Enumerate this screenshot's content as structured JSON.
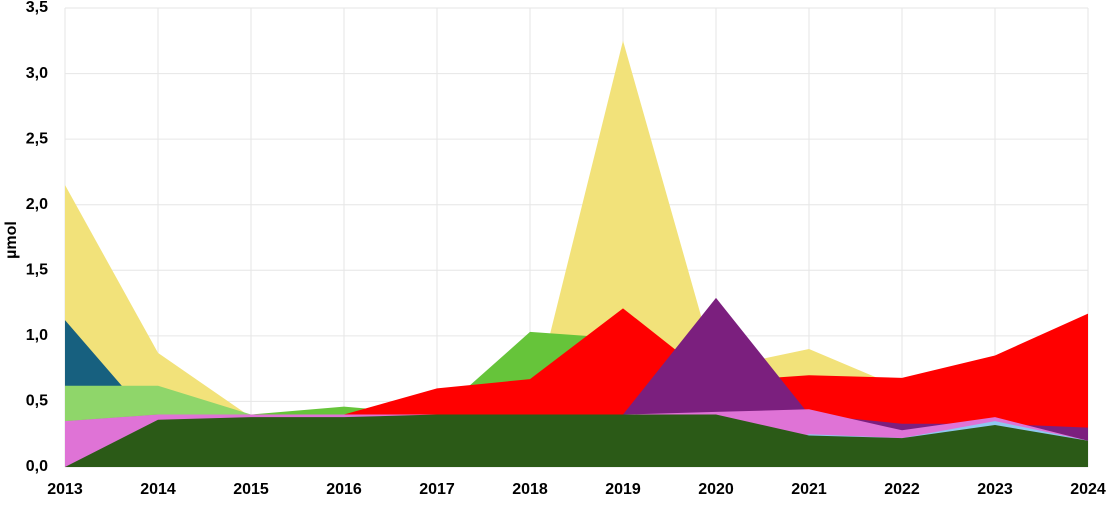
{
  "chart_data": {
    "type": "area",
    "y_label": "µmol",
    "x": [
      2013,
      2014,
      2015,
      2016,
      2017,
      2018,
      2019,
      2020,
      2021,
      2022,
      2023,
      2024
    ],
    "xlim": [
      2013,
      2024
    ],
    "xticks": [
      2013,
      2014,
      2015,
      2016,
      2017,
      2018,
      2019,
      2020,
      2021,
      2022,
      2023,
      2024
    ],
    "ylim": [
      0,
      3.5
    ],
    "yticks": [
      {
        "value": 0,
        "label": "0,0"
      },
      {
        "value": 0.5,
        "label": "0,5"
      },
      {
        "value": 1,
        "label": "1,0"
      },
      {
        "value": 1.5,
        "label": "1,5"
      },
      {
        "value": 2,
        "label": "2,0"
      },
      {
        "value": 2.5,
        "label": "2,5"
      },
      {
        "value": 3,
        "label": "3,0"
      },
      {
        "value": 3.5,
        "label": "3,5"
      }
    ],
    "grid": true,
    "series": [
      {
        "color": "#f2e27a",
        "values": [
          2.15,
          0.87,
          0.38,
          0.4,
          0.4,
          0.4,
          3.25,
          0.75,
          0.9,
          0.6,
          0.6,
          0.3
        ]
      },
      {
        "color": "#17607f",
        "values": [
          1.12,
          0.3,
          0.3,
          0.3,
          0.3,
          0.3,
          0.3,
          0.3,
          0.3,
          0.3,
          0.3,
          0.2
        ]
      },
      {
        "color": "#8fd66a",
        "values": [
          0.62,
          0.62,
          0.4,
          0.4,
          0.4,
          0.4,
          0.4,
          0.4,
          0.4,
          0.3,
          0.3,
          0.2
        ]
      },
      {
        "color": "#66c43a",
        "values": [
          0.35,
          0.4,
          0.4,
          0.46,
          0.4,
          1.03,
          0.98,
          0.4,
          0.4,
          0.3,
          0.42,
          0.2
        ]
      },
      {
        "color": "#ff0000",
        "values": [
          0,
          0,
          0,
          0.4,
          0.6,
          0.67,
          1.21,
          0.65,
          0.7,
          0.68,
          0.85,
          1.17
        ]
      },
      {
        "color": "#7b1f7e",
        "values": [
          0,
          0,
          0,
          0,
          0,
          0,
          0.4,
          1.29,
          0.4,
          0.33,
          0.33,
          0.3
        ]
      },
      {
        "color": "#df73d6",
        "values": [
          0.35,
          0.4,
          0.4,
          0.4,
          0.4,
          0.4,
          0.4,
          0.42,
          0.44,
          0.28,
          0.38,
          0.2
        ]
      },
      {
        "color": "#8fc8f0",
        "values": [
          0,
          0,
          0,
          0,
          0,
          0,
          0,
          0,
          0.25,
          0.22,
          0.35,
          0.2
        ]
      },
      {
        "color": "#2b5a17",
        "values": [
          0,
          0.36,
          0.38,
          0.38,
          0.4,
          0.4,
          0.4,
          0.4,
          0.24,
          0.22,
          0.32,
          0.2
        ]
      }
    ]
  }
}
